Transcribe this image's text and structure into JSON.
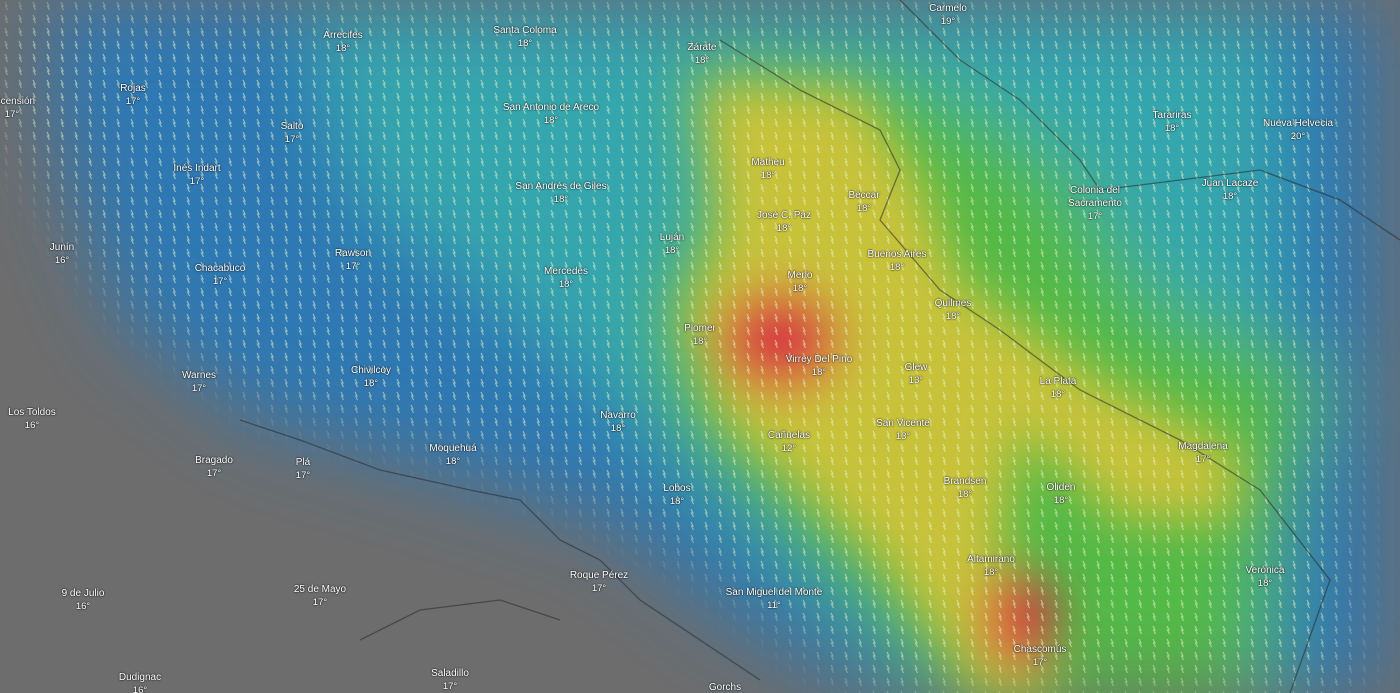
{
  "map": {
    "layer": "wind / rain overlay",
    "colors": {
      "land_no_data": "#6d6d6d",
      "low": "#2f78b3",
      "mid": "#35a6ad",
      "green": "#52b947",
      "yellow": "#c8c23a",
      "high": "#d8303f"
    },
    "icons": {
      "particles": "wind-particle-icon"
    },
    "cities": [
      {
        "name": "Arrecifes",
        "temp": "18°"
      },
      {
        "name": "Santa Coloma",
        "temp": "18°"
      },
      {
        "name": "Zárate",
        "temp": "18°"
      },
      {
        "name": "Carmelo",
        "temp": "19°"
      },
      {
        "name": "Rojas",
        "temp": "17°"
      },
      {
        "name": "Ascensión",
        "temp": "17°"
      },
      {
        "name": "Salto",
        "temp": "17°"
      },
      {
        "name": "San Antonio de Areco",
        "temp": "18°"
      },
      {
        "name": "Tarariras",
        "temp": "18°"
      },
      {
        "name": "Nueva Helvecia",
        "temp": "20°"
      },
      {
        "name": "Inés Indart",
        "temp": "17°"
      },
      {
        "name": "Matheu",
        "temp": "18°"
      },
      {
        "name": "San Andrés de Giles",
        "temp": "18°"
      },
      {
        "name": "Colonia del Sacramento",
        "temp": "17°"
      },
      {
        "name": "Juan Lacaze",
        "temp": "18°"
      },
      {
        "name": "Béccar",
        "temp": "18°"
      },
      {
        "name": "José C. Paz",
        "temp": "18°"
      },
      {
        "name": "Junín",
        "temp": "16°"
      },
      {
        "name": "Luján",
        "temp": "18°"
      },
      {
        "name": "Rawson",
        "temp": "17°"
      },
      {
        "name": "Buenos Aires",
        "temp": "18°"
      },
      {
        "name": "Chacabuco",
        "temp": "17°"
      },
      {
        "name": "Mercedes",
        "temp": "18°"
      },
      {
        "name": "Merlo",
        "temp": "18°"
      },
      {
        "name": "Quilmes",
        "temp": "18°"
      },
      {
        "name": "Plomer",
        "temp": "18°"
      },
      {
        "name": "Virrey Del Pino",
        "temp": "18°"
      },
      {
        "name": "Glew",
        "temp": "13°"
      },
      {
        "name": "Chivilcoy",
        "temp": "18°"
      },
      {
        "name": "Warnes",
        "temp": "17°"
      },
      {
        "name": "La Plata",
        "temp": "18°"
      },
      {
        "name": "Los Toldos",
        "temp": "16°"
      },
      {
        "name": "Navarro",
        "temp": "18°"
      },
      {
        "name": "San Vicente",
        "temp": "13°"
      },
      {
        "name": "Cañuelas",
        "temp": "12°"
      },
      {
        "name": "Magdalena",
        "temp": "17°"
      },
      {
        "name": "Moquehuá",
        "temp": "18°"
      },
      {
        "name": "Bragado",
        "temp": "17°"
      },
      {
        "name": "Plá",
        "temp": "17°"
      },
      {
        "name": "Brandsen",
        "temp": "18°"
      },
      {
        "name": "Oliden",
        "temp": "18°"
      },
      {
        "name": "Lobos",
        "temp": "18°"
      },
      {
        "name": "Altamirano",
        "temp": "18°"
      },
      {
        "name": "Verónica",
        "temp": "18°"
      },
      {
        "name": "Roque Pérez",
        "temp": "17°"
      },
      {
        "name": "25 de Mayo",
        "temp": "17°"
      },
      {
        "name": "9 de Julio",
        "temp": "16°"
      },
      {
        "name": "San Miguel del Monte",
        "temp": "11°"
      },
      {
        "name": "Chascomús",
        "temp": "17°"
      },
      {
        "name": "Dudignac",
        "temp": "16°"
      },
      {
        "name": "Saladillo",
        "temp": "17°"
      },
      {
        "name": "Gorchs",
        "temp": ""
      }
    ]
  }
}
